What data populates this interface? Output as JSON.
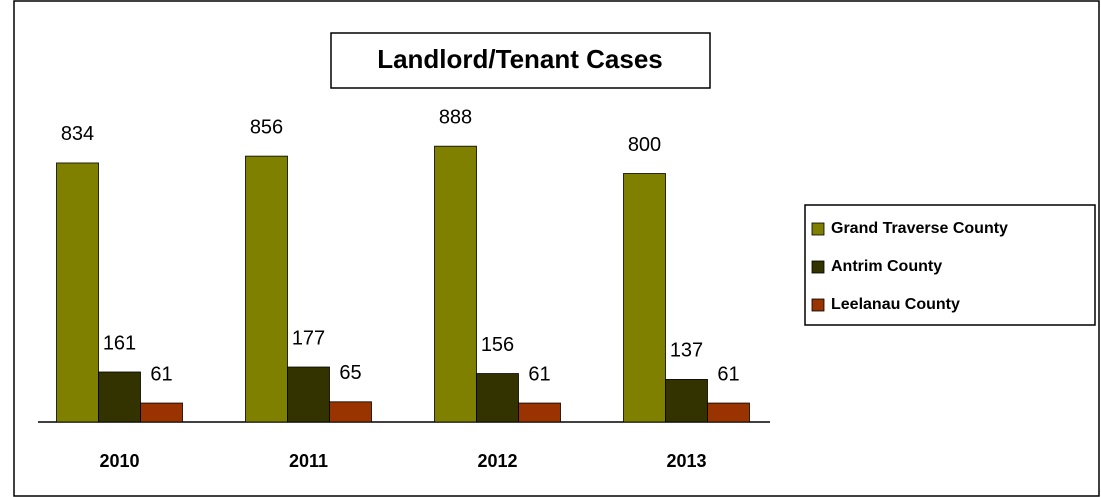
{
  "chart_data": {
    "type": "bar",
    "title": "Landlord/Tenant Cases",
    "categories": [
      "2010",
      "2011",
      "2012",
      "2013"
    ],
    "series": [
      {
        "name": "Grand Traverse County",
        "color": "#808000",
        "values": [
          834,
          856,
          888,
          800
        ]
      },
      {
        "name": "Antrim County",
        "color": "#333300",
        "values": [
          161,
          177,
          156,
          137
        ]
      },
      {
        "name": "Leelanau County",
        "color": "#993300",
        "values": [
          61,
          65,
          61,
          61
        ]
      }
    ]
  }
}
